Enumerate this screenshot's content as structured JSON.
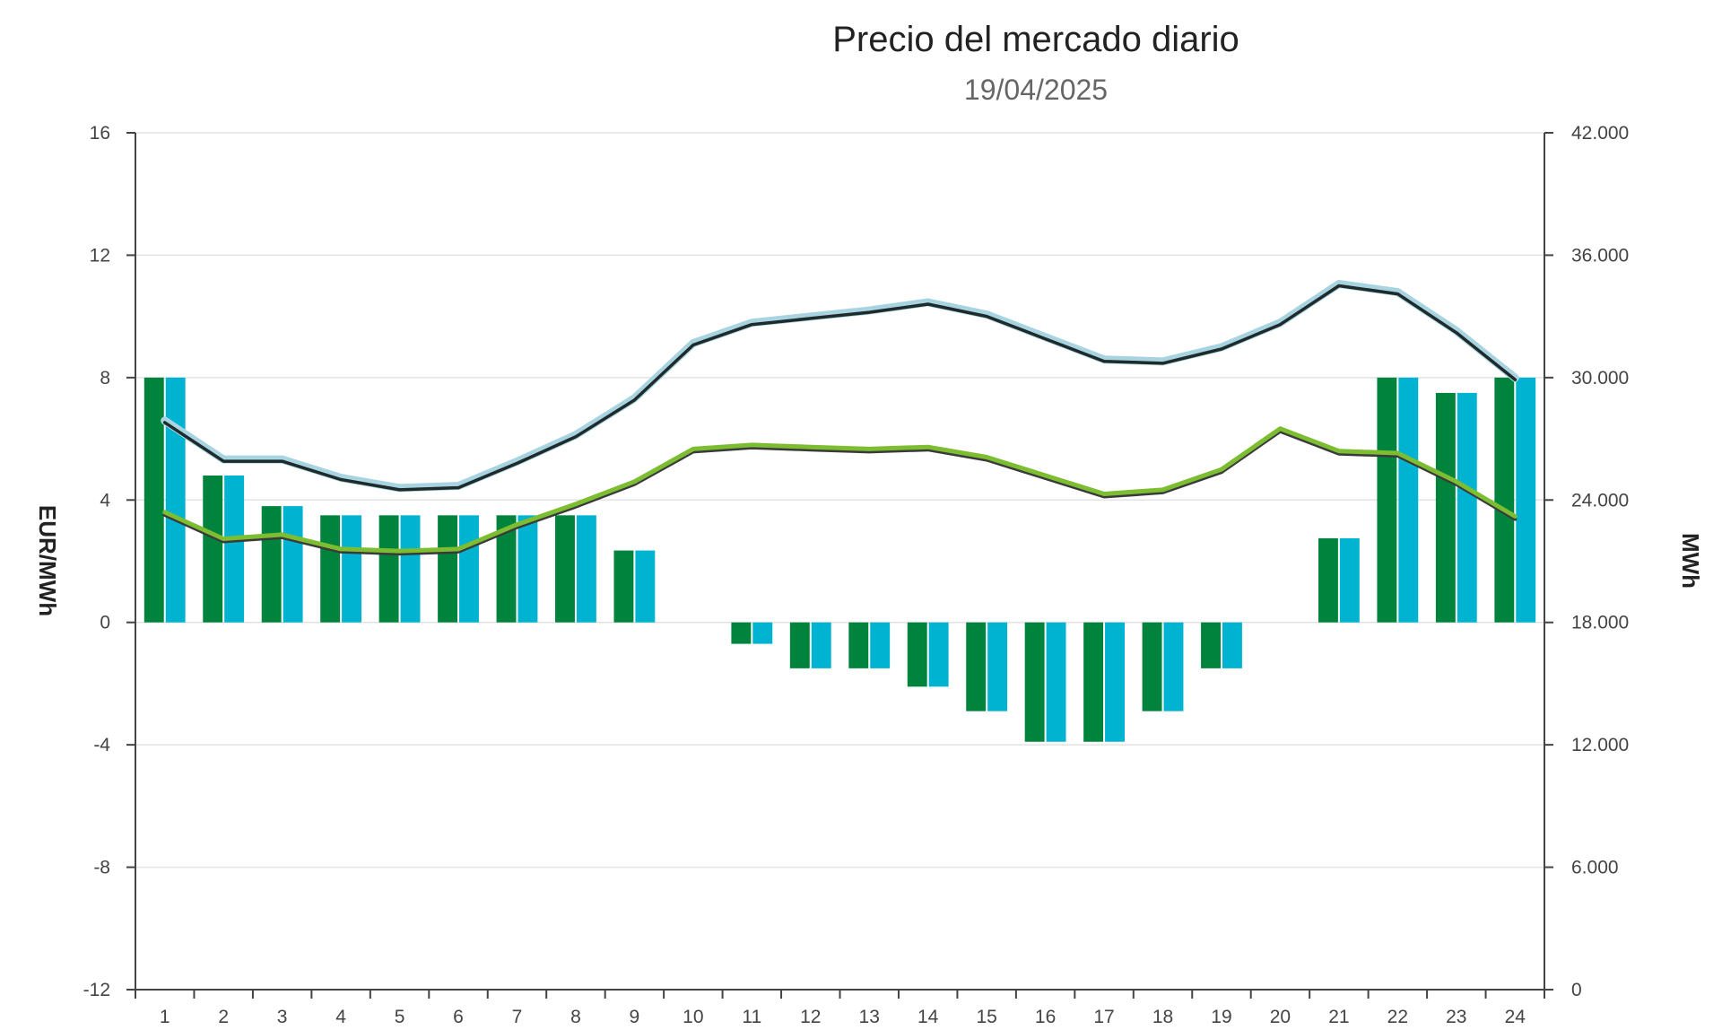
{
  "chart_data": {
    "type": "bar+line",
    "title": "Precio del mercado diario",
    "subtitle": "19/04/2025",
    "ylabel_left": "EUR/MWh",
    "ylabel_right": "MWh",
    "ylim_left": [
      -12,
      16
    ],
    "ylim_right": [
      0,
      42000
    ],
    "yticks_left": [
      "16",
      "12",
      "8",
      "4",
      "0",
      "-4",
      "-8",
      "-12"
    ],
    "yticks_right": [
      "42.000",
      "36.000",
      "30.000",
      "24.000",
      "18.000",
      "12.000",
      "6.000",
      "0"
    ],
    "categories": [
      "1",
      "2",
      "3",
      "4",
      "5",
      "6",
      "7",
      "8",
      "9",
      "10",
      "11",
      "12",
      "13",
      "14",
      "15",
      "16",
      "17",
      "18",
      "19",
      "20",
      "21",
      "22",
      "23",
      "24"
    ],
    "grid": true,
    "colors": {
      "bar_dark": "#00843d",
      "bar_light": "#00b3d1",
      "line_black": "#1f2a2a",
      "line_black_halo": "#a8d4e2",
      "line_green": "#7cbd32",
      "line_green_shadow": "#3a3a3a"
    },
    "series": [
      {
        "type": "bar",
        "axis": "left",
        "values": [
          8.0,
          4.8,
          3.8,
          3.5,
          3.5,
          3.5,
          3.5,
          3.5,
          2.35,
          0,
          -0.7,
          -1.5,
          -1.5,
          -2.1,
          -2.9,
          -3.9,
          -3.9,
          -2.9,
          -1.5,
          0,
          2.75,
          8.0,
          7.5,
          8.0
        ]
      },
      {
        "type": "bar",
        "axis": "left",
        "values": [
          8.0,
          4.8,
          3.8,
          3.5,
          3.5,
          3.5,
          3.5,
          3.5,
          2.35,
          0,
          -0.7,
          -1.5,
          -1.5,
          -2.1,
          -2.9,
          -3.9,
          -3.9,
          -2.9,
          -1.5,
          0,
          2.75,
          8.0,
          7.5,
          8.0
        ]
      },
      {
        "type": "line",
        "axis": "right",
        "values": [
          27800,
          25900,
          25900,
          25000,
          24500,
          24600,
          25800,
          27100,
          28900,
          31600,
          32600,
          32900,
          33200,
          33600,
          33000,
          31900,
          30800,
          30700,
          31400,
          32600,
          34500,
          34100,
          32200,
          29900
        ]
      },
      {
        "type": "line",
        "axis": "right",
        "values": [
          23400,
          22100,
          22300,
          21600,
          21500,
          21600,
          22800,
          23800,
          24900,
          26500,
          26700,
          26600,
          26500,
          26600,
          26100,
          25200,
          24300,
          24500,
          25500,
          27500,
          26400,
          26300,
          24900,
          23200
        ]
      }
    ]
  }
}
